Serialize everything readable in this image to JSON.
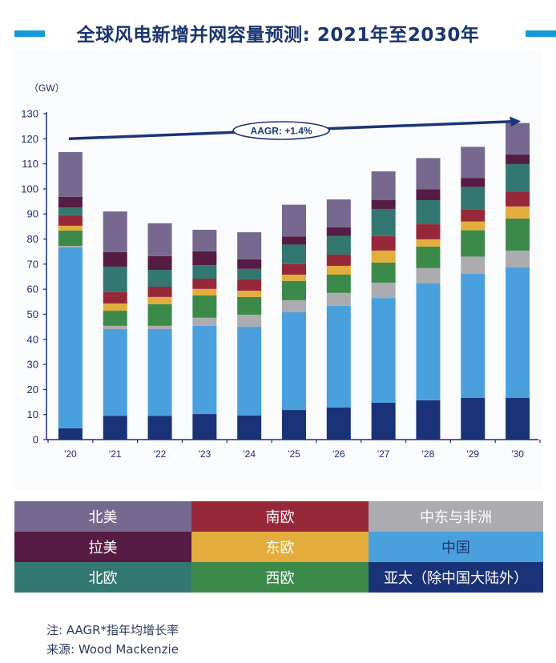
{
  "title": "全球风电新增并网容量预测: 2021年至2030年",
  "colors": {
    "title_accent": "#159ad8",
    "title_text": "#1b3570",
    "axis": "#1b2f6e"
  },
  "chart_data": {
    "type": "bar",
    "stacked": true,
    "title": "全球风电新增并网容量预测: 2021年至2030年",
    "ylabel": "（GW）",
    "xlabel": "",
    "ylim": [
      0,
      130
    ],
    "yticks": [
      0,
      10,
      20,
      30,
      40,
      50,
      60,
      70,
      80,
      90,
      100,
      110,
      120,
      130
    ],
    "categories": [
      "'20",
      "'21",
      "'22",
      "'23",
      "'24",
      "'25",
      "'26",
      "'27",
      "'28",
      "'29",
      "'30"
    ],
    "series": [
      {
        "name": "亚太（除中国大陆外）",
        "color": "#1a3278",
        "values": [
          4.5,
          9.5,
          9.5,
          10.2,
          9.6,
          11.8,
          12.8,
          14.7,
          15.7,
          16.6,
          16.6
        ]
      },
      {
        "name": "中国",
        "color": "#4aa0dd",
        "values": [
          72.2,
          34.6,
          34.6,
          35.2,
          35.4,
          39.0,
          40.6,
          41.8,
          46.6,
          49.5,
          52.1
        ]
      },
      {
        "name": "中东与非洲",
        "color": "#acacb0",
        "values": [
          0.6,
          1.3,
          1.3,
          3.2,
          4.8,
          4.8,
          5.1,
          6.1,
          6.1,
          6.9,
          6.7
        ]
      },
      {
        "name": "西欧",
        "color": "#3c8a4a",
        "values": [
          6.1,
          6.0,
          8.6,
          8.9,
          7.1,
          7.7,
          7.3,
          8.0,
          8.6,
          10.5,
          12.8
        ]
      },
      {
        "name": "东欧",
        "color": "#e2ad3d",
        "values": [
          1.9,
          2.9,
          2.9,
          2.6,
          2.5,
          2.5,
          3.5,
          4.8,
          2.9,
          3.5,
          4.8
        ]
      },
      {
        "name": "南欧",
        "color": "#96283a",
        "values": [
          4.2,
          4.5,
          4.1,
          4.1,
          4.5,
          4.2,
          4.5,
          5.8,
          6.0,
          4.8,
          5.7
        ]
      },
      {
        "name": "北欧",
        "color": "#337870",
        "values": [
          3.1,
          10.2,
          6.7,
          5.4,
          4.2,
          7.8,
          7.4,
          10.8,
          9.6,
          9.0,
          11.2
        ]
      },
      {
        "name": "拉美",
        "color": "#561c43",
        "values": [
          4.2,
          5.8,
          5.5,
          5.5,
          3.8,
          3.2,
          3.5,
          3.5,
          4.4,
          3.5,
          3.8
        ]
      },
      {
        "name": "北美",
        "color": "#77688f",
        "values": [
          17.9,
          16.2,
          13.1,
          8.6,
          10.8,
          12.7,
          11.1,
          11.5,
          12.4,
          12.5,
          12.6
        ]
      }
    ],
    "annotation": {
      "text": "AAGR: +1.4%",
      "type": "trend-arrow",
      "from": {
        "category": "'20",
        "value": 120
      },
      "to": {
        "category": "'30",
        "value": 127
      }
    },
    "grid": false,
    "legend": "bottom"
  },
  "legend": {
    "rows": [
      [
        {
          "label": "北美",
          "color": "#77688f"
        },
        {
          "label": "南欧",
          "color": "#96283a"
        },
        {
          "label": "中东与非洲",
          "color": "#acacb0"
        }
      ],
      [
        {
          "label": "拉美",
          "color": "#561c43"
        },
        {
          "label": "东欧",
          "color": "#e2ad3d"
        },
        {
          "label": "中国",
          "color": "#4aa0dd",
          "dark_text": true
        }
      ],
      [
        {
          "label": "北欧",
          "color": "#337870"
        },
        {
          "label": "西欧",
          "color": "#3c8a4a"
        },
        {
          "label": "亚太（除中国大陆外）",
          "color": "#1a3278"
        }
      ]
    ]
  },
  "notes": {
    "note": "注: AAGR*指年均增长率",
    "source": "来源: Wood Mackenzie"
  }
}
